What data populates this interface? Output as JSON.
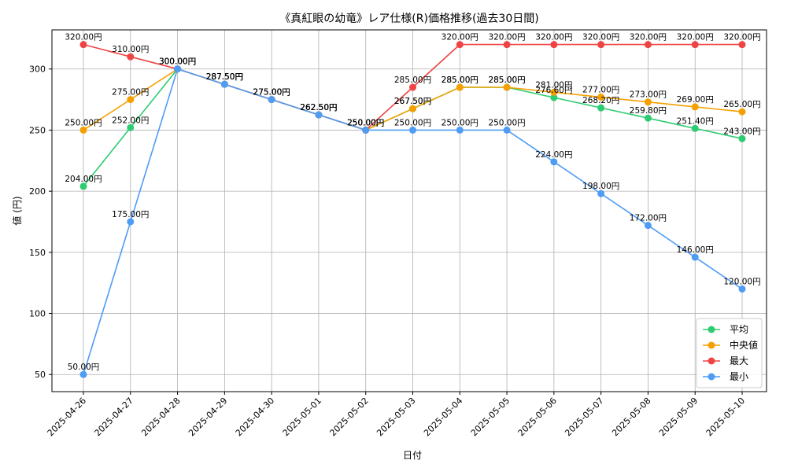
{
  "chart_data": {
    "type": "line",
    "title": "《真紅眼の幼竜》レア仕様(R)価格推移(過去30日間)",
    "xlabel": "日付",
    "ylabel": "値 (円)",
    "ylim": [
      36,
      332
    ],
    "yticks": [
      50,
      100,
      150,
      200,
      250,
      300
    ],
    "grid": true,
    "legend_position": "bottom-right",
    "value_suffix": "円",
    "categories": [
      "2025-04-26",
      "2025-04-27",
      "2025-04-28",
      "2025-04-29",
      "2025-04-30",
      "2025-05-01",
      "2025-05-02",
      "2025-05-03",
      "2025-05-04",
      "2025-05-05",
      "2025-05-06",
      "2025-05-07",
      "2025-05-08",
      "2025-05-09",
      "2025-05-10"
    ],
    "series": [
      {
        "name": "平均",
        "color": "#2ecc71",
        "values": [
          204.0,
          252.0,
          300.0,
          287.5,
          275.0,
          262.5,
          250.0,
          267.5,
          285.0,
          285.0,
          276.6,
          268.2,
          259.8,
          251.4,
          243.0
        ]
      },
      {
        "name": "中央値",
        "color": "#f5a000",
        "values": [
          250.0,
          275.0,
          300.0,
          287.5,
          275.0,
          262.5,
          250.0,
          267.5,
          285.0,
          285.0,
          281.0,
          277.0,
          273.0,
          269.0,
          265.0
        ]
      },
      {
        "name": "最大",
        "color": "#ef4444",
        "values": [
          320.0,
          310.0,
          300.0,
          287.5,
          275.0,
          262.5,
          250.0,
          285.0,
          320.0,
          320.0,
          320.0,
          320.0,
          320.0,
          320.0,
          320.0
        ]
      },
      {
        "name": "最小",
        "color": "#4f9cf5",
        "values": [
          50.0,
          175.0,
          300.0,
          287.5,
          275.0,
          262.5,
          250.0,
          250.0,
          250.0,
          250.0,
          224.0,
          198.0,
          172.0,
          146.0,
          120.0
        ]
      }
    ]
  }
}
